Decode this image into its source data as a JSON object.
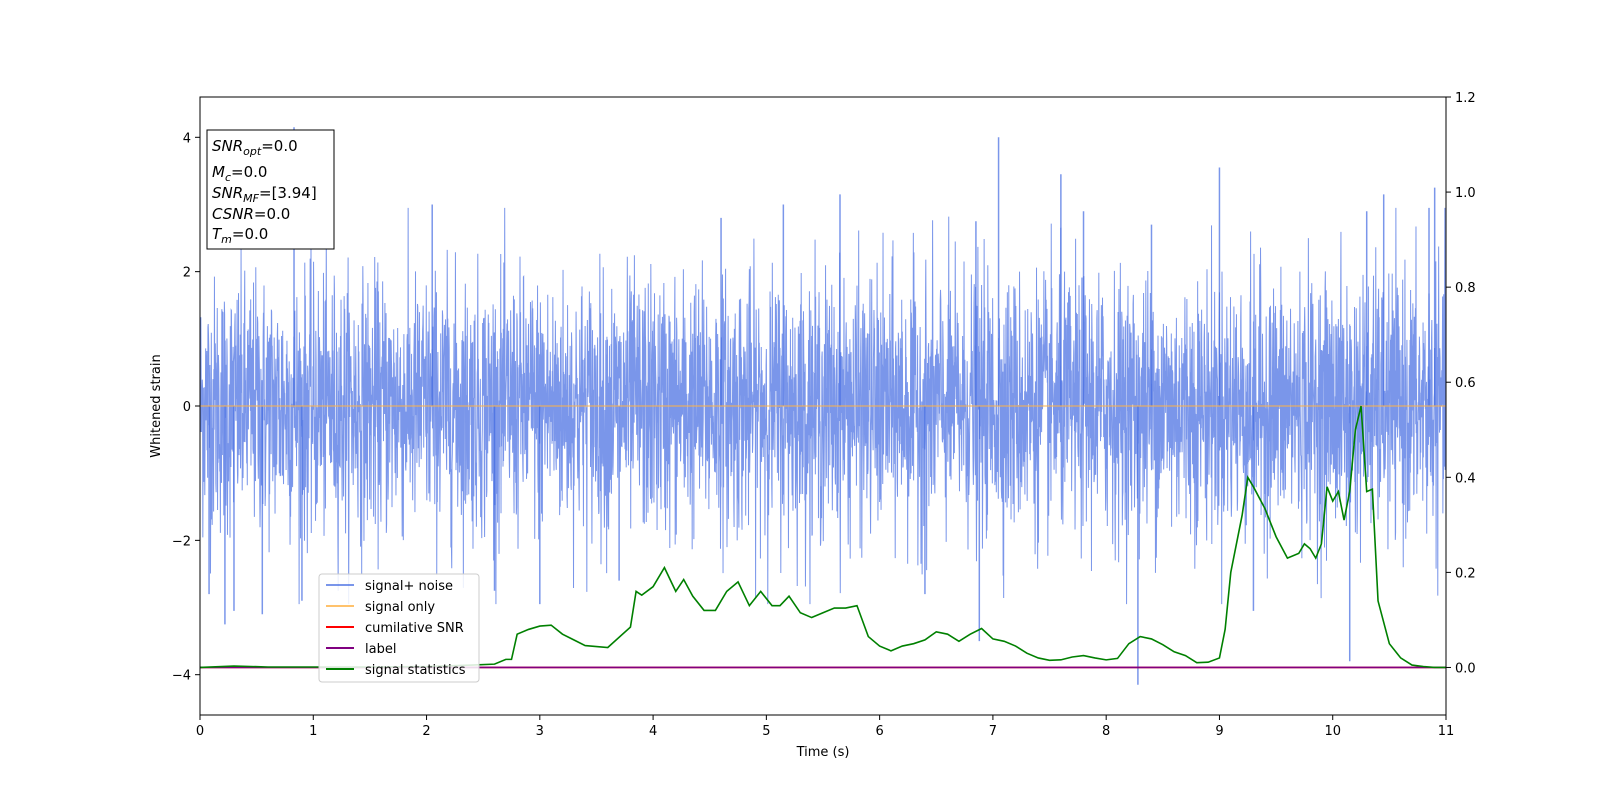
{
  "chart_data": {
    "type": "line",
    "xlabel": "Time (s)",
    "ylabel": "Whitened strain",
    "xlim": [
      0,
      11
    ],
    "ylim_left": [
      -4.6,
      4.6
    ],
    "ylim_right": [
      -0.1,
      1.2
    ],
    "x_ticks": [
      0,
      1,
      2,
      3,
      4,
      5,
      6,
      7,
      8,
      9,
      10,
      11
    ],
    "y_ticks_left": [
      -4,
      -2,
      0,
      2,
      4
    ],
    "y_ticks_right": [
      0.0,
      0.2,
      0.4,
      0.6,
      0.8,
      1.0,
      1.2
    ],
    "x_tick_labels": [
      "0",
      "1",
      "2",
      "3",
      "4",
      "5",
      "6",
      "7",
      "8",
      "9",
      "10",
      "11"
    ],
    "y_tick_labels_left": [
      "−4",
      "−2",
      "0",
      "2",
      "4"
    ],
    "y_tick_labels_right": [
      "0.0",
      "0.2",
      "0.4",
      "0.6",
      "0.8",
      "1.0",
      "1.2"
    ],
    "legend_position": "lower-left",
    "info_box": {
      "snr_opt": {
        "main": "SNR",
        "sub": "opt",
        "value": "=0.0"
      },
      "mc": {
        "main": "M",
        "sub": "c",
        "value": "=0.0"
      },
      "snr_mf": {
        "main": "SNR",
        "sub": "MF",
        "value": "=[3.94]"
      },
      "csnr": {
        "main": "CSNR",
        "sub": "",
        "value": "=0.0"
      },
      "tm": {
        "main": "T",
        "sub": "m",
        "value": "=0.0"
      }
    },
    "series": [
      {
        "name": "signal+ noise",
        "color": "#4169e1",
        "axis": "left",
        "description_stats": {
          "min": -4.15,
          "max": 4.15
        },
        "spikes": [
          [
            0.08,
            -2.8
          ],
          [
            0.22,
            -3.25
          ],
          [
            0.3,
            -3.05
          ],
          [
            0.55,
            -3.1
          ],
          [
            0.83,
            4.15
          ],
          [
            0.9,
            -2.9
          ],
          [
            2.05,
            3.0
          ],
          [
            2.6,
            -2.75
          ],
          [
            3.0,
            -2.95
          ],
          [
            3.7,
            -2.6
          ],
          [
            4.6,
            2.8
          ],
          [
            5.15,
            3.0
          ],
          [
            5.65,
            3.15
          ],
          [
            6.4,
            -2.8
          ],
          [
            6.85,
            2.75
          ],
          [
            6.88,
            -3.5
          ],
          [
            7.05,
            4.0
          ],
          [
            7.6,
            3.45
          ],
          [
            7.8,
            2.9
          ],
          [
            8.28,
            -4.15
          ],
          [
            8.4,
            2.7
          ],
          [
            9.0,
            3.55
          ],
          [
            9.3,
            -3.05
          ],
          [
            10.15,
            -3.8
          ],
          [
            10.3,
            2.9
          ],
          [
            10.45,
            3.15
          ],
          [
            10.85,
            2.95
          ],
          [
            10.9,
            3.25
          ]
        ]
      },
      {
        "name": "signal only",
        "color": "#ffb347",
        "axis": "left",
        "x": [
          0,
          11
        ],
        "y": [
          0,
          0
        ]
      },
      {
        "name": "cumilative SNR",
        "color": "#ff0000",
        "axis": "right",
        "x": [
          0,
          11
        ],
        "y": [
          0,
          0
        ]
      },
      {
        "name": "label",
        "color": "#800080",
        "axis": "right",
        "x": [
          0,
          11
        ],
        "y": [
          0,
          0
        ]
      },
      {
        "name": "signal statistics",
        "color": "#008000",
        "axis": "right",
        "x": [
          0.0,
          0.3,
          0.6,
          1.0,
          1.5,
          2.0,
          2.4,
          2.6,
          2.7,
          2.75,
          2.8,
          2.9,
          3.0,
          3.1,
          3.2,
          3.3,
          3.4,
          3.6,
          3.8,
          3.85,
          3.9,
          4.0,
          4.1,
          4.2,
          4.27,
          4.35,
          4.45,
          4.55,
          4.65,
          4.75,
          4.85,
          4.95,
          5.05,
          5.12,
          5.2,
          5.3,
          5.4,
          5.5,
          5.6,
          5.7,
          5.8,
          5.9,
          6.0,
          6.1,
          6.2,
          6.3,
          6.4,
          6.5,
          6.6,
          6.7,
          6.8,
          6.9,
          7.0,
          7.1,
          7.2,
          7.3,
          7.4,
          7.5,
          7.6,
          7.7,
          7.8,
          7.9,
          8.0,
          8.1,
          8.2,
          8.3,
          8.4,
          8.5,
          8.6,
          8.7,
          8.8,
          8.9,
          9.0,
          9.05,
          9.1,
          9.2,
          9.25,
          9.3,
          9.4,
          9.5,
          9.6,
          9.7,
          9.75,
          9.8,
          9.85,
          9.9,
          9.95,
          10.0,
          10.05,
          10.1,
          10.15,
          10.2,
          10.25,
          10.3,
          10.35,
          10.4,
          10.5,
          10.6,
          10.7,
          10.8,
          10.9,
          11.0
        ],
        "y": [
          0.0,
          0.003,
          0.001,
          0.001,
          0.001,
          0.002,
          0.005,
          0.007,
          0.017,
          0.017,
          0.07,
          0.08,
          0.087,
          0.089,
          0.07,
          0.058,
          0.046,
          0.042,
          0.085,
          0.16,
          0.152,
          0.17,
          0.21,
          0.16,
          0.185,
          0.15,
          0.12,
          0.12,
          0.16,
          0.18,
          0.13,
          0.16,
          0.13,
          0.13,
          0.15,
          0.115,
          0.105,
          0.115,
          0.125,
          0.125,
          0.13,
          0.065,
          0.045,
          0.035,
          0.045,
          0.05,
          0.058,
          0.075,
          0.07,
          0.055,
          0.07,
          0.082,
          0.06,
          0.055,
          0.045,
          0.03,
          0.02,
          0.015,
          0.016,
          0.022,
          0.025,
          0.02,
          0.016,
          0.019,
          0.05,
          0.065,
          0.06,
          0.048,
          0.033,
          0.025,
          0.01,
          0.011,
          0.02,
          0.08,
          0.2,
          0.32,
          0.4,
          0.38,
          0.335,
          0.275,
          0.23,
          0.24,
          0.26,
          0.25,
          0.23,
          0.26,
          0.38,
          0.35,
          0.37,
          0.31,
          0.37,
          0.5,
          0.55,
          0.37,
          0.375,
          0.14,
          0.05,
          0.02,
          0.005,
          0.002,
          0.0,
          0.0
        ]
      }
    ]
  }
}
